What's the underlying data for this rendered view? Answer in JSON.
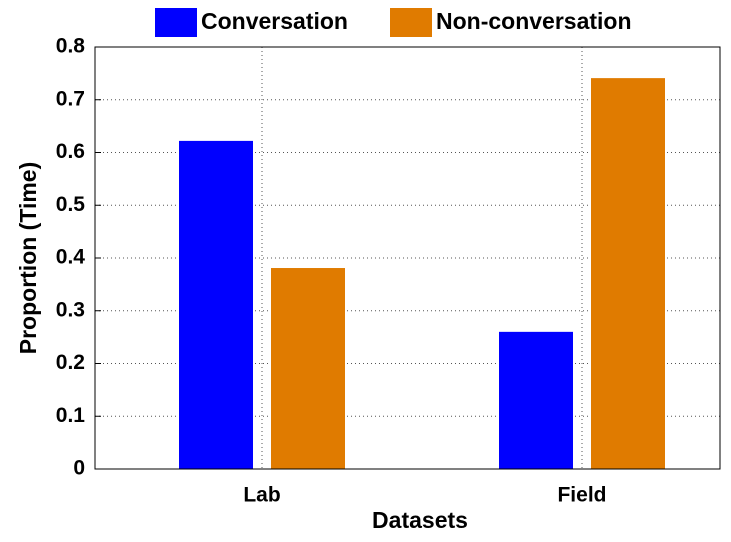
{
  "chart_data": {
    "type": "bar",
    "x_label": "Datasets",
    "y_label": "Proportion (Time)",
    "categories": [
      "Lab",
      "Field"
    ],
    "series": [
      {
        "name": "Conversation",
        "color": "#0000ff",
        "values": [
          0.622,
          0.26
        ]
      },
      {
        "name": "Non-conversation",
        "color": "#e07b00",
        "values": [
          0.381,
          0.741
        ]
      }
    ],
    "ylim": [
      0,
      0.8
    ],
    "yticks": [
      0,
      0.1,
      0.2,
      0.3,
      0.4,
      0.5,
      0.6,
      0.7,
      0.8
    ],
    "grid": true,
    "legend": "top"
  }
}
